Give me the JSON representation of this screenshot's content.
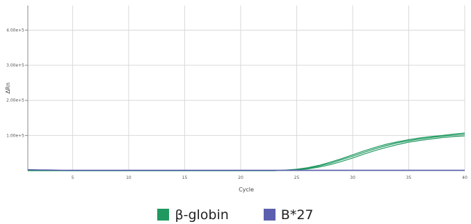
{
  "chart_data": {
    "type": "line",
    "xlabel": "Cycle",
    "ylabel": "ΔRn",
    "xlim": [
      1,
      40
    ],
    "ylim": [
      0,
      470000
    ],
    "grid": true,
    "legend_position": "bottom-center",
    "x_ticks": [
      {
        "value": 5,
        "label": "5"
      },
      {
        "value": 10,
        "label": "10"
      },
      {
        "value": 15,
        "label": "15"
      },
      {
        "value": 20,
        "label": "20"
      },
      {
        "value": 25,
        "label": "25"
      },
      {
        "value": 30,
        "label": "30"
      },
      {
        "value": 35,
        "label": "35"
      },
      {
        "value": 40,
        "label": "40"
      }
    ],
    "y_ticks": [
      {
        "value": 100000,
        "label": "1.00e+5"
      },
      {
        "value": 200000,
        "label": "2.00e+5"
      },
      {
        "value": 300000,
        "label": "3.00e+5"
      },
      {
        "value": 400000,
        "label": "4.00e+5"
      }
    ],
    "x": [
      1,
      2,
      3,
      4,
      5,
      6,
      7,
      8,
      9,
      10,
      11,
      12,
      13,
      14,
      15,
      16,
      17,
      18,
      19,
      20,
      21,
      22,
      23,
      24,
      25,
      26,
      27,
      28,
      29,
      30,
      31,
      32,
      33,
      34,
      35,
      36,
      37,
      38,
      39,
      40
    ],
    "series": [
      {
        "name": "β-globin",
        "color": "#1f9960",
        "values": [
          0,
          0,
          0,
          0,
          0,
          0,
          0,
          0,
          0,
          0,
          0,
          0,
          0,
          0,
          0,
          0,
          0,
          0,
          0,
          0,
          0,
          0,
          0,
          500,
          2000,
          5000,
          10000,
          17000,
          26000,
          36000,
          47000,
          57000,
          66000,
          74000,
          81000,
          86000,
          90000,
          94000,
          97000,
          99000
        ]
      },
      {
        "name": "β-globin",
        "color": "#1f9960",
        "values": [
          0,
          0,
          0,
          0,
          0,
          0,
          0,
          0,
          0,
          0,
          0,
          0,
          0,
          0,
          0,
          0,
          0,
          0,
          0,
          0,
          0,
          0,
          0,
          1000,
          3000,
          7000,
          13000,
          21000,
          31000,
          41000,
          52000,
          62000,
          71000,
          79000,
          85000,
          90000,
          94000,
          98000,
          101000,
          104000
        ]
      },
      {
        "name": "β-globin",
        "color": "#1f9960",
        "values": [
          0,
          0,
          0,
          0,
          0,
          0,
          0,
          0,
          0,
          0,
          0,
          0,
          0,
          0,
          0,
          0,
          0,
          0,
          0,
          0,
          0,
          0,
          0,
          1500,
          4000,
          8500,
          15000,
          24000,
          34000,
          45000,
          56000,
          66000,
          75000,
          82000,
          88000,
          93000,
          97000,
          100000,
          104000,
          107000
        ]
      },
      {
        "name": "B*27",
        "color": "#5b5fae",
        "values": [
          2500,
          2000,
          1500,
          1000,
          800,
          800,
          800,
          800,
          800,
          800,
          800,
          800,
          800,
          800,
          800,
          800,
          800,
          800,
          800,
          800,
          800,
          800,
          800,
          800,
          800,
          800,
          800,
          800,
          800,
          800,
          800,
          800,
          800,
          800,
          800,
          800,
          800,
          800,
          800,
          800
        ]
      }
    ]
  }
}
